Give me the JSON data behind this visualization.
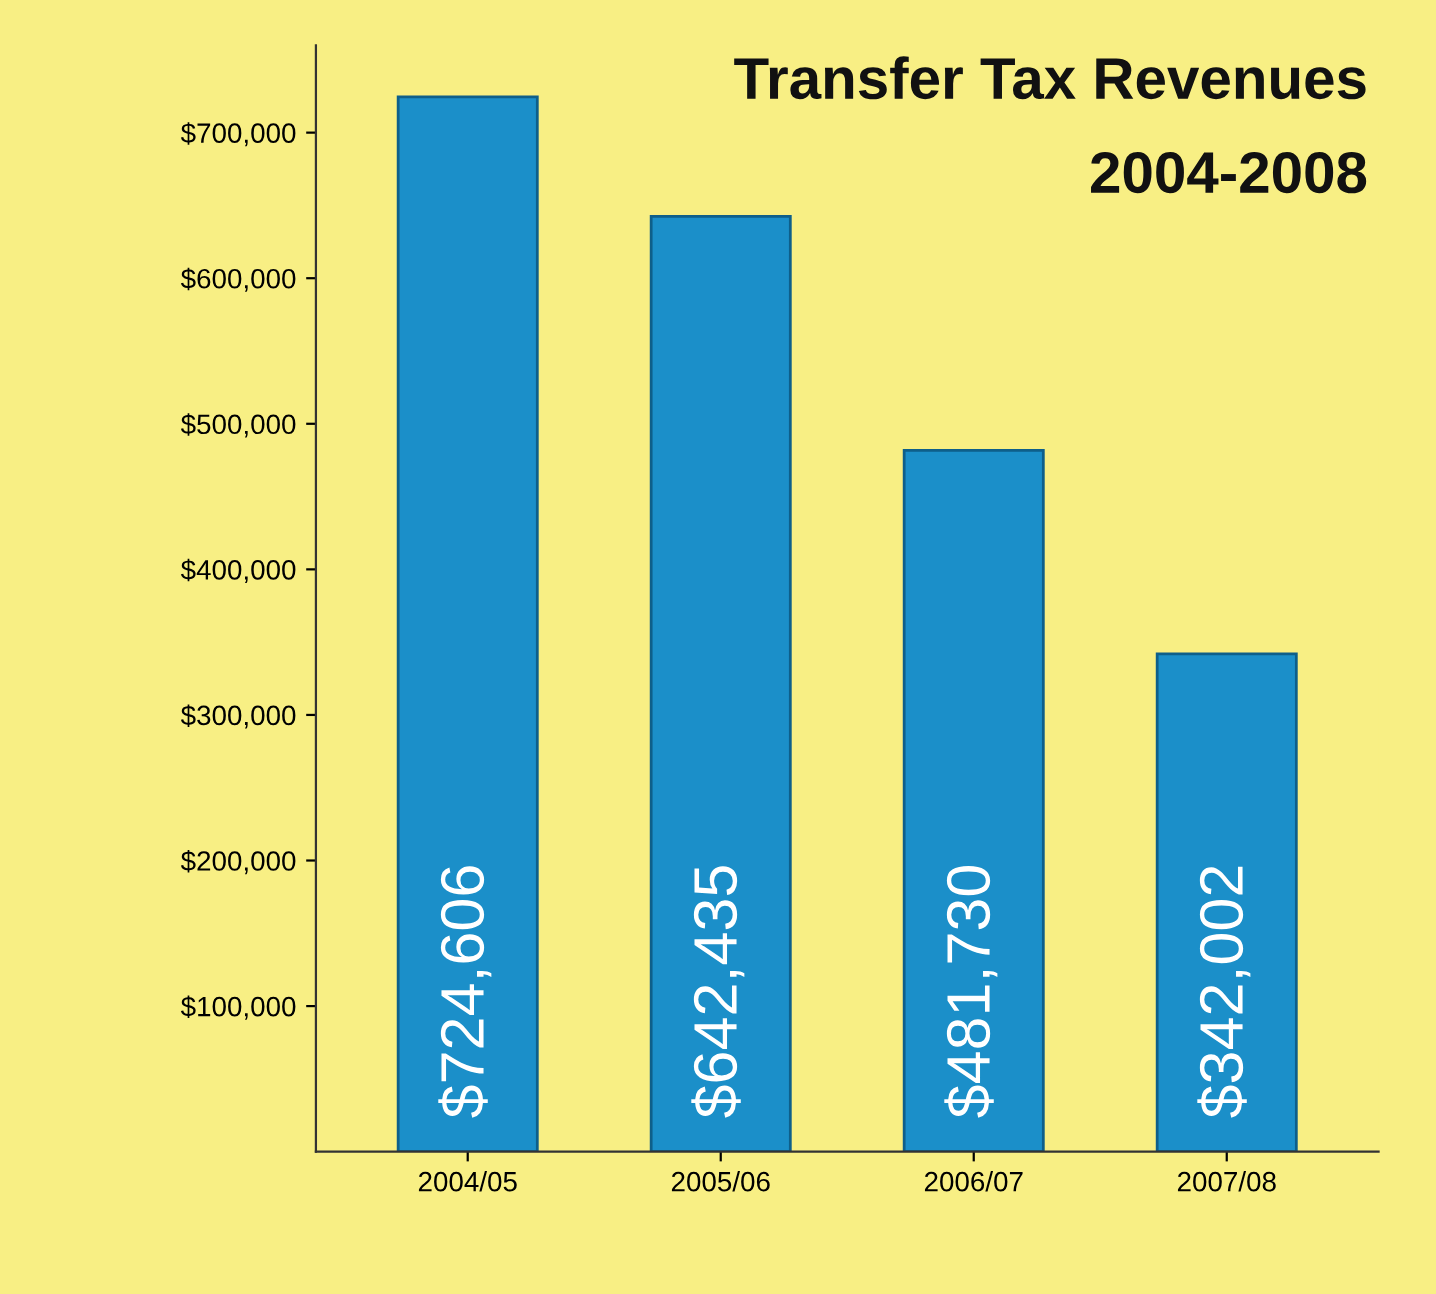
{
  "chart_data": {
    "type": "bar",
    "title": "Transfer Tax Revenues",
    "subtitle": "2004-2008",
    "categories": [
      "2004/05",
      "2005/06",
      "2006/07",
      "2007/08"
    ],
    "values": [
      724606,
      642435,
      481730,
      342002
    ],
    "value_labels": [
      "$724,606",
      "$642,435",
      "$481,730",
      "$342,002"
    ],
    "color": "#1b8fc9",
    "ylim": [
      0,
      760000
    ],
    "yticks": [
      {
        "value": 100000,
        "label": "$100,000"
      },
      {
        "value": 200000,
        "label": "$200,000"
      },
      {
        "value": 300000,
        "label": "$300,000"
      },
      {
        "value": 400000,
        "label": "$400,000"
      },
      {
        "value": 500000,
        "label": "$500,000"
      },
      {
        "value": 600000,
        "label": "$600,000"
      },
      {
        "value": 700000,
        "label": "$700,000"
      }
    ],
    "grid": false
  }
}
